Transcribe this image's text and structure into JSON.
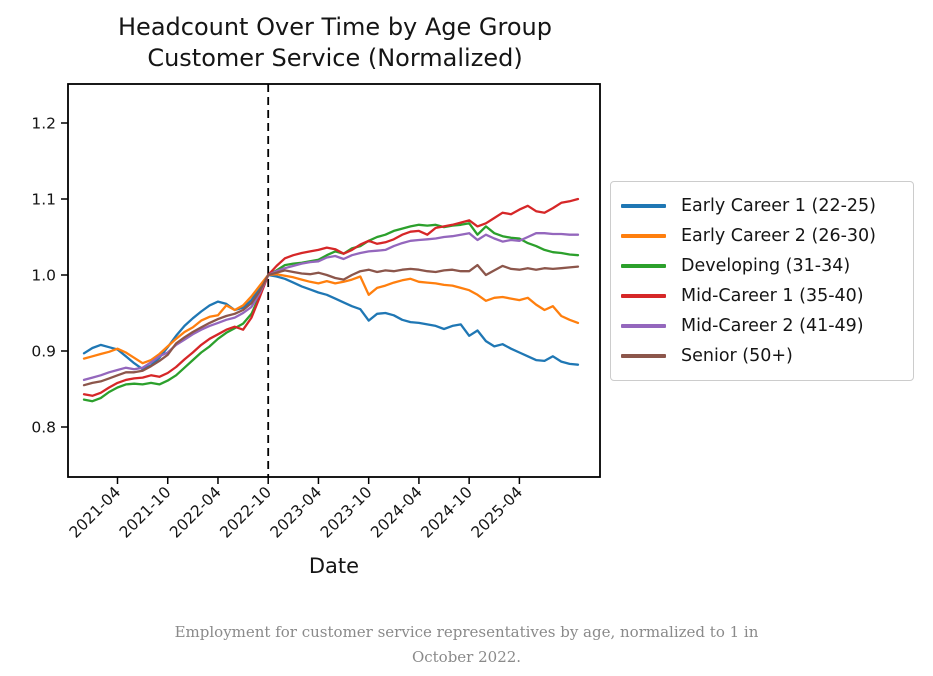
{
  "page": {
    "title_line1": "Headcount Over Time by Age Group",
    "title_line2": "Customer Service (Normalized)",
    "caption_line1": "Employment for customer service representatives by age, normalized to 1 in",
    "caption_line2": "October 2022."
  },
  "chart_data": {
    "type": "line",
    "title": "Headcount Over Time by Age Group\nCustomer Service (Normalized)",
    "xlabel": "Date",
    "ylabel": "",
    "grid": false,
    "legend_position": "right",
    "yticks": [
      "0.8",
      "0.9",
      "1.0",
      "1.1",
      "1.2"
    ],
    "ylim": [
      0.734,
      1.249
    ],
    "xtick_labels": [
      "2021-04",
      "2021-10",
      "2022-04",
      "2022-10",
      "2023-04",
      "2023-10",
      "2024-04",
      "2024-10",
      "2025-04"
    ],
    "vline": {
      "x": "2022-10",
      "style": "dashed",
      "color": "#000000"
    },
    "x": [
      "2020-12",
      "2021-01",
      "2021-02",
      "2021-03",
      "2021-04",
      "2021-05",
      "2021-06",
      "2021-07",
      "2021-08",
      "2021-09",
      "2021-10",
      "2021-11",
      "2021-12",
      "2022-01",
      "2022-02",
      "2022-03",
      "2022-04",
      "2022-05",
      "2022-06",
      "2022-07",
      "2022-08",
      "2022-09",
      "2022-10",
      "2022-11",
      "2022-12",
      "2023-01",
      "2023-02",
      "2023-03",
      "2023-04",
      "2023-05",
      "2023-06",
      "2023-07",
      "2023-08",
      "2023-09",
      "2023-10",
      "2023-11",
      "2023-12",
      "2024-01",
      "2024-02",
      "2024-03",
      "2024-04",
      "2024-05",
      "2024-06",
      "2024-07",
      "2024-08",
      "2024-09",
      "2024-10",
      "2024-11",
      "2024-12",
      "2025-01",
      "2025-02",
      "2025-03",
      "2025-04",
      "2025-05",
      "2025-06",
      "2025-07",
      "2025-08",
      "2025-09",
      "2025-10",
      "2025-11"
    ],
    "series": [
      {
        "name": "Early Career 1 (22-25)",
        "color": "#1f77b4",
        "values": [
          0.897,
          0.904,
          0.908,
          0.905,
          0.902,
          0.893,
          0.884,
          0.876,
          0.881,
          0.891,
          0.905,
          0.92,
          0.933,
          0.943,
          0.952,
          0.96,
          0.965,
          0.962,
          0.954,
          0.957,
          0.967,
          0.983,
          1.0,
          0.998,
          0.995,
          0.99,
          0.985,
          0.981,
          0.977,
          0.974,
          0.969,
          0.964,
          0.959,
          0.955,
          0.94,
          0.949,
          0.95,
          0.947,
          0.941,
          0.938,
          0.937,
          0.935,
          0.933,
          0.929,
          0.933,
          0.935,
          0.92,
          0.927,
          0.913,
          0.906,
          0.909,
          0.903,
          0.898,
          0.893,
          0.888,
          0.887,
          0.893,
          0.886,
          0.883,
          0.882
        ]
      },
      {
        "name": "Early Career 2 (26-30)",
        "color": "#ff7f0e",
        "values": [
          0.89,
          0.893,
          0.896,
          0.899,
          0.903,
          0.898,
          0.891,
          0.884,
          0.888,
          0.896,
          0.906,
          0.916,
          0.925,
          0.931,
          0.94,
          0.945,
          0.947,
          0.96,
          0.954,
          0.96,
          0.972,
          0.986,
          1.0,
          1.001,
          0.999,
          0.997,
          0.994,
          0.991,
          0.989,
          0.992,
          0.989,
          0.991,
          0.994,
          0.998,
          0.974,
          0.983,
          0.986,
          0.99,
          0.993,
          0.995,
          0.991,
          0.99,
          0.989,
          0.987,
          0.986,
          0.983,
          0.98,
          0.974,
          0.966,
          0.97,
          0.971,
          0.969,
          0.967,
          0.97,
          0.961,
          0.954,
          0.959,
          0.946,
          0.941,
          0.937
        ]
      },
      {
        "name": "Developing (31-34)",
        "color": "#2ca02c",
        "values": [
          0.836,
          0.834,
          0.838,
          0.846,
          0.852,
          0.856,
          0.857,
          0.856,
          0.858,
          0.856,
          0.861,
          0.868,
          0.878,
          0.888,
          0.898,
          0.906,
          0.916,
          0.924,
          0.93,
          0.936,
          0.949,
          0.973,
          1.0,
          1.006,
          1.013,
          1.015,
          1.016,
          1.018,
          1.02,
          1.026,
          1.031,
          1.028,
          1.035,
          1.038,
          1.045,
          1.05,
          1.053,
          1.058,
          1.061,
          1.064,
          1.066,
          1.065,
          1.066,
          1.063,
          1.065,
          1.066,
          1.068,
          1.053,
          1.064,
          1.055,
          1.051,
          1.049,
          1.048,
          1.042,
          1.038,
          1.033,
          1.03,
          1.029,
          1.027,
          1.026
        ]
      },
      {
        "name": "Mid-Career 1 (35-40)",
        "color": "#d62728",
        "values": [
          0.843,
          0.841,
          0.845,
          0.852,
          0.858,
          0.862,
          0.864,
          0.865,
          0.868,
          0.866,
          0.871,
          0.879,
          0.889,
          0.898,
          0.908,
          0.916,
          0.922,
          0.928,
          0.932,
          0.928,
          0.944,
          0.971,
          1.0,
          1.012,
          1.022,
          1.026,
          1.029,
          1.031,
          1.033,
          1.036,
          1.034,
          1.028,
          1.033,
          1.04,
          1.045,
          1.041,
          1.043,
          1.047,
          1.053,
          1.057,
          1.058,
          1.053,
          1.062,
          1.064,
          1.066,
          1.069,
          1.072,
          1.064,
          1.068,
          1.075,
          1.082,
          1.08,
          1.086,
          1.091,
          1.084,
          1.082,
          1.088,
          1.095,
          1.097,
          1.1
        ]
      },
      {
        "name": "Mid-Career 2 (41-49)",
        "color": "#9467bd",
        "values": [
          0.862,
          0.865,
          0.868,
          0.872,
          0.875,
          0.878,
          0.876,
          0.878,
          0.885,
          0.893,
          0.898,
          0.908,
          0.915,
          0.922,
          0.928,
          0.933,
          0.937,
          0.941,
          0.944,
          0.95,
          0.958,
          0.976,
          1.0,
          1.005,
          1.009,
          1.012,
          1.015,
          1.017,
          1.018,
          1.023,
          1.025,
          1.021,
          1.026,
          1.029,
          1.031,
          1.032,
          1.033,
          1.038,
          1.042,
          1.045,
          1.046,
          1.047,
          1.048,
          1.05,
          1.051,
          1.053,
          1.055,
          1.046,
          1.053,
          1.048,
          1.044,
          1.046,
          1.045,
          1.05,
          1.055,
          1.055,
          1.054,
          1.054,
          1.053,
          1.053
        ]
      },
      {
        "name": "Senior (50+)",
        "color": "#8c564b",
        "values": [
          0.855,
          0.858,
          0.86,
          0.864,
          0.868,
          0.872,
          0.872,
          0.874,
          0.88,
          0.887,
          0.895,
          0.91,
          0.918,
          0.925,
          0.931,
          0.937,
          0.942,
          0.946,
          0.949,
          0.954,
          0.963,
          0.979,
          1.0,
          1.003,
          1.006,
          1.004,
          1.002,
          1.001,
          1.003,
          1.0,
          0.996,
          0.994,
          1.0,
          1.005,
          1.007,
          1.004,
          1.006,
          1.005,
          1.007,
          1.008,
          1.007,
          1.005,
          1.004,
          1.006,
          1.007,
          1.005,
          1.005,
          1.013,
          1.0,
          1.006,
          1.012,
          1.008,
          1.007,
          1.009,
          1.007,
          1.009,
          1.008,
          1.009,
          1.01,
          1.011
        ]
      }
    ]
  }
}
